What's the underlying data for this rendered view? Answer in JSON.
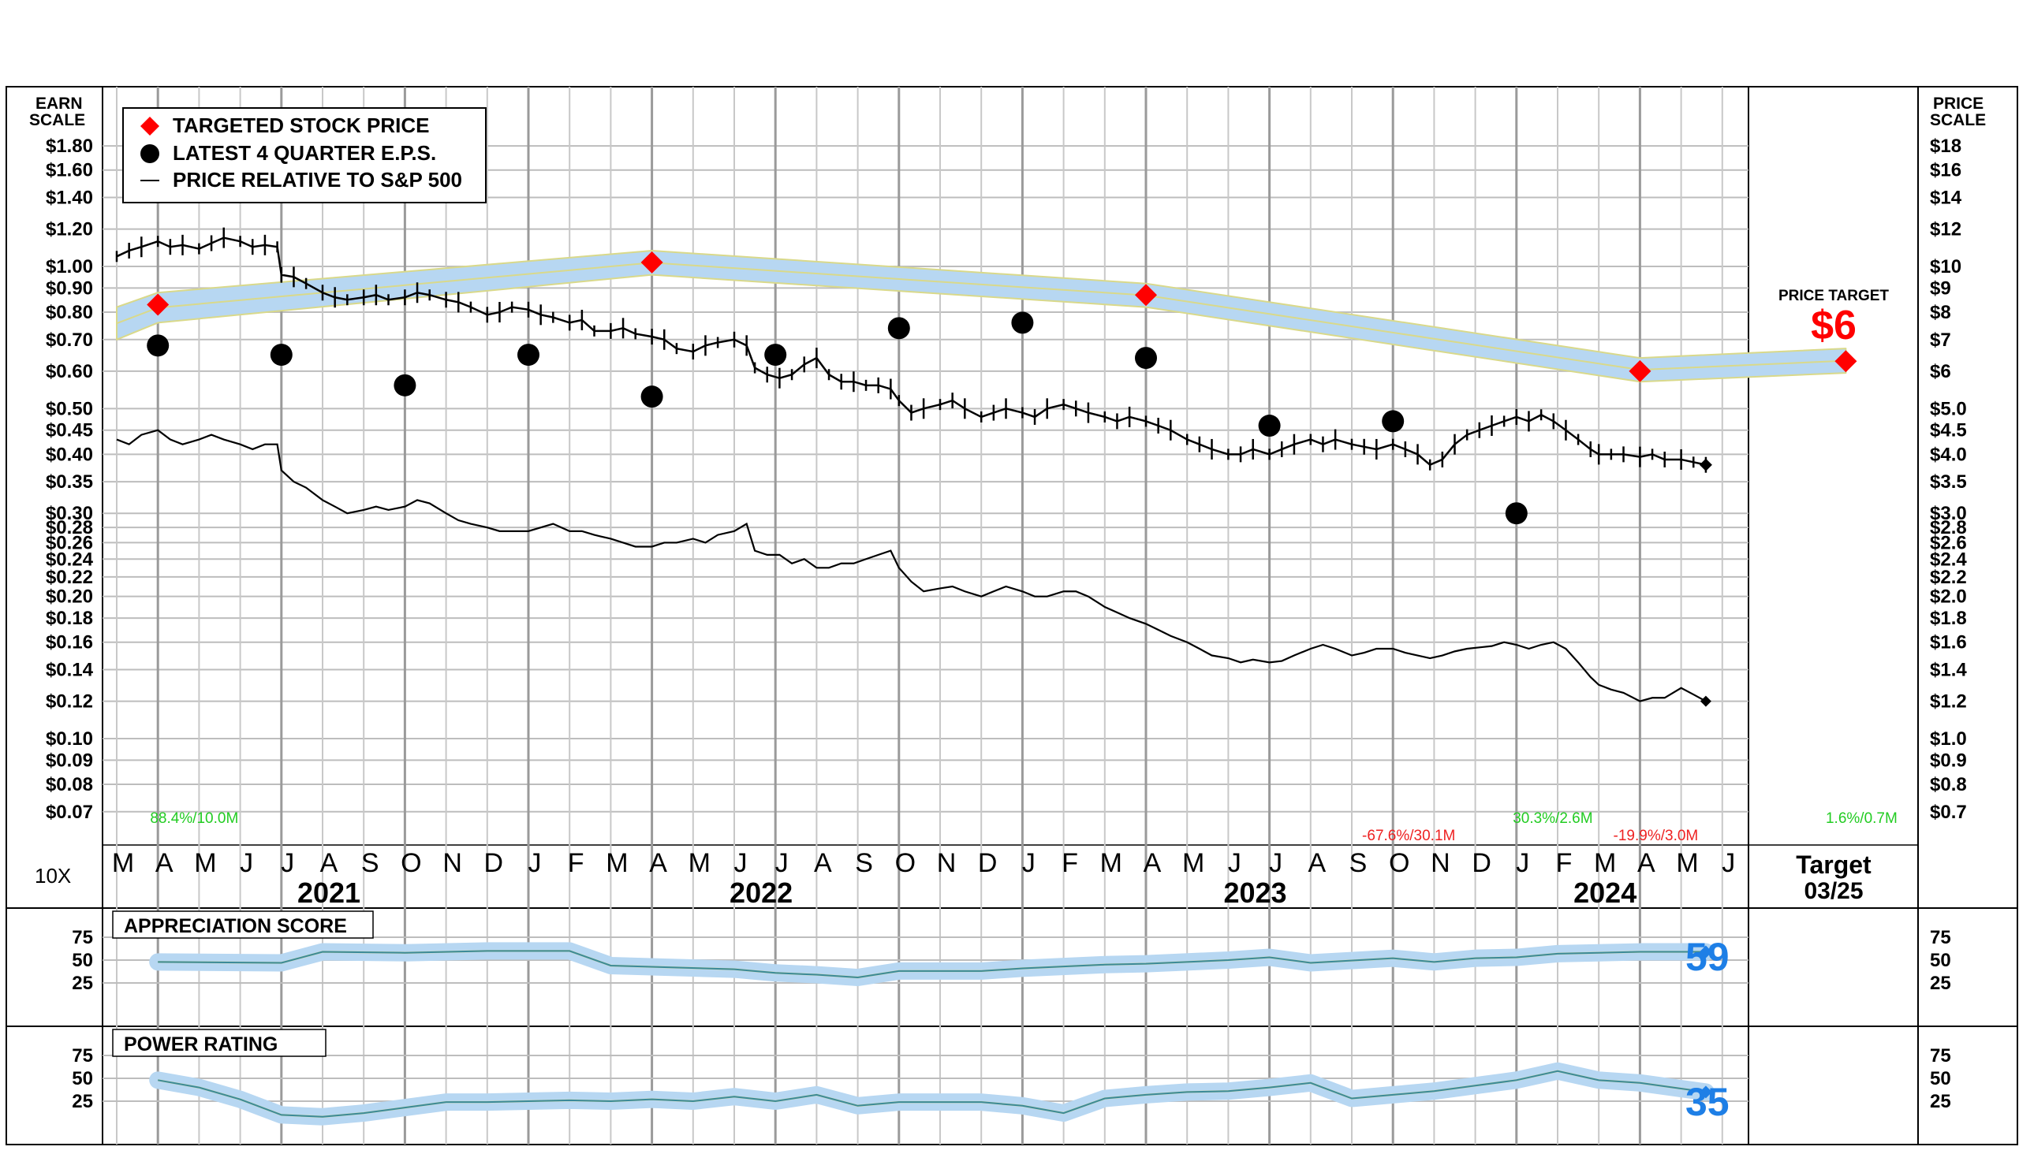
{
  "header": {
    "earn_scale_label_1": "EARN",
    "earn_scale_label_2": "SCALE",
    "price_scale_label_1": "PRICE",
    "price_scale_label_2": "SCALE",
    "multiplier": "10X",
    "price_target_label": "PRICE TARGET",
    "price_target_value": "$6",
    "target_label": "Target",
    "target_date": "03/25"
  },
  "legend": {
    "items": [
      {
        "label": "TARGETED STOCK PRICE",
        "icon": "red-diamond-icon"
      },
      {
        "label": "LATEST 4 QUARTER E.P.S.",
        "icon": "black-dot-icon"
      },
      {
        "label": "PRICE RELATIVE TO S&P 500",
        "icon": "line-icon"
      }
    ]
  },
  "colors": {
    "band": "#b7d7f2",
    "target": "#ff0000",
    "eps": "#000000",
    "score_value": "#1e7fe6",
    "ann_green": "#22cc22",
    "ann_red": "#ee2222"
  },
  "chart_data": {
    "type": "line",
    "log_scale": true,
    "grid": true,
    "months": [
      "M",
      "A",
      "M",
      "J",
      "J",
      "A",
      "S",
      "O",
      "N",
      "D",
      "J",
      "F",
      "M",
      "A",
      "M",
      "J",
      "J",
      "A",
      "S",
      "O",
      "N",
      "D",
      "J",
      "F",
      "M",
      "A",
      "M",
      "J",
      "J",
      "A",
      "S",
      "O",
      "N",
      "D",
      "J",
      "F",
      "M",
      "A",
      "M",
      "J"
    ],
    "years": [
      {
        "label": "2021",
        "month_index": 5
      },
      {
        "label": "2022",
        "month_index": 15.5
      },
      {
        "label": "2023",
        "month_index": 27.5
      },
      {
        "label": "2024",
        "month_index": 36
      }
    ],
    "earn_ticks": [
      "$1.80",
      "$1.60",
      "$1.40",
      "$1.20",
      "$1.00",
      "$0.90",
      "$0.80",
      "$0.70",
      "$0.60",
      "$0.50",
      "$0.45",
      "$0.40",
      "$0.35",
      "$0.30",
      "$0.28",
      "$0.26",
      "$0.24",
      "$0.22",
      "$0.20",
      "$0.18",
      "$0.16",
      "$0.14",
      "$0.12",
      "$0.10",
      "$0.09",
      "$0.08",
      "$0.07"
    ],
    "earn_tick_values": [
      1.8,
      1.6,
      1.4,
      1.2,
      1.0,
      0.9,
      0.8,
      0.7,
      0.6,
      0.5,
      0.45,
      0.4,
      0.35,
      0.3,
      0.28,
      0.26,
      0.24,
      0.22,
      0.2,
      0.18,
      0.16,
      0.14,
      0.12,
      0.1,
      0.09,
      0.08,
      0.07
    ],
    "price_ticks": [
      "$18",
      "$16",
      "$14",
      "$12",
      "$10",
      "$9",
      "$8",
      "$7",
      "$6",
      "$5.0",
      "$4.5",
      "$4.0",
      "$3.5",
      "$3.0",
      "$2.8",
      "$2.6",
      "$2.4",
      "$2.2",
      "$2.0",
      "$1.8",
      "$1.6",
      "$1.4",
      "$1.2",
      "$1.0",
      "$0.9",
      "$0.8",
      "$0.7"
    ],
    "target_prices": [
      {
        "month": 1,
        "price": 8.3
      },
      {
        "month": 13,
        "price": 10.2
      },
      {
        "month": 25,
        "price": 8.7
      },
      {
        "month": 37,
        "price": 6.0
      },
      {
        "month": 42,
        "price": 6.3
      }
    ],
    "band": [
      {
        "month": 0,
        "lo": 7.0,
        "hi": 8.2
      },
      {
        "month": 1,
        "lo": 7.6,
        "hi": 8.8
      },
      {
        "month": 13,
        "lo": 9.6,
        "hi": 10.8
      },
      {
        "month": 25,
        "lo": 8.2,
        "hi": 9.2
      },
      {
        "month": 37,
        "lo": 5.7,
        "hi": 6.4
      },
      {
        "month": 42,
        "lo": 5.95,
        "hi": 6.7
      }
    ],
    "eps": [
      {
        "month": 1,
        "value": 0.68
      },
      {
        "month": 4,
        "value": 0.65
      },
      {
        "month": 7,
        "value": 0.56
      },
      {
        "month": 10,
        "value": 0.65
      },
      {
        "month": 13,
        "value": 0.53
      },
      {
        "month": 16,
        "value": 0.65
      },
      {
        "month": 19,
        "value": 0.74
      },
      {
        "month": 22,
        "value": 0.76
      },
      {
        "month": 25,
        "value": 0.64
      },
      {
        "month": 28,
        "value": 0.46
      },
      {
        "month": 31,
        "value": 0.47
      },
      {
        "month": 34,
        "value": 0.3
      }
    ],
    "price_weekly": [
      [
        0,
        10.5
      ],
      [
        0.3,
        10.8
      ],
      [
        0.6,
        11.0
      ],
      [
        1.0,
        11.3
      ],
      [
        1.3,
        11.0
      ],
      [
        1.6,
        11.1
      ],
      [
        2.0,
        10.9
      ],
      [
        2.3,
        11.2
      ],
      [
        2.6,
        11.5
      ],
      [
        3.0,
        11.3
      ],
      [
        3.3,
        11.0
      ],
      [
        3.6,
        11.1
      ],
      [
        3.9,
        11.0
      ],
      [
        4.0,
        9.6
      ],
      [
        4.3,
        9.5
      ],
      [
        4.6,
        9.2
      ],
      [
        5.0,
        8.8
      ],
      [
        5.3,
        8.6
      ],
      [
        5.6,
        8.5
      ],
      [
        6.0,
        8.6
      ],
      [
        6.3,
        8.7
      ],
      [
        6.6,
        8.5
      ],
      [
        7.0,
        8.6
      ],
      [
        7.3,
        8.8
      ],
      [
        7.6,
        8.7
      ],
      [
        8.0,
        8.5
      ],
      [
        8.3,
        8.4
      ],
      [
        8.6,
        8.2
      ],
      [
        9.0,
        7.9
      ],
      [
        9.3,
        8.0
      ],
      [
        9.6,
        8.2
      ],
      [
        10.0,
        8.1
      ],
      [
        10.3,
        7.9
      ],
      [
        10.6,
        7.8
      ],
      [
        11.0,
        7.6
      ],
      [
        11.3,
        7.7
      ],
      [
        11.6,
        7.3
      ],
      [
        12.0,
        7.3
      ],
      [
        12.3,
        7.4
      ],
      [
        12.6,
        7.2
      ],
      [
        13.0,
        7.1
      ],
      [
        13.3,
        7.0
      ],
      [
        13.6,
        6.7
      ],
      [
        14.0,
        6.6
      ],
      [
        14.3,
        6.8
      ],
      [
        14.6,
        6.9
      ],
      [
        15.0,
        7.0
      ],
      [
        15.3,
        6.8
      ],
      [
        15.5,
        6.1
      ],
      [
        15.8,
        5.9
      ],
      [
        16.1,
        5.8
      ],
      [
        16.4,
        5.9
      ],
      [
        16.7,
        6.2
      ],
      [
        17.0,
        6.4
      ],
      [
        17.3,
        5.9
      ],
      [
        17.6,
        5.7
      ],
      [
        17.9,
        5.7
      ],
      [
        18.2,
        5.6
      ],
      [
        18.5,
        5.6
      ],
      [
        18.8,
        5.5
      ],
      [
        19.0,
        5.2
      ],
      [
        19.3,
        4.9
      ],
      [
        19.6,
        5.0
      ],
      [
        20.0,
        5.1
      ],
      [
        20.3,
        5.2
      ],
      [
        20.6,
        5.0
      ],
      [
        21.0,
        4.8
      ],
      [
        21.3,
        4.9
      ],
      [
        21.6,
        5.0
      ],
      [
        22.0,
        4.9
      ],
      [
        22.3,
        4.8
      ],
      [
        22.6,
        5.0
      ],
      [
        23.0,
        5.1
      ],
      [
        23.3,
        5.0
      ],
      [
        23.6,
        4.9
      ],
      [
        24.0,
        4.8
      ],
      [
        24.3,
        4.7
      ],
      [
        24.6,
        4.8
      ],
      [
        25.0,
        4.7
      ],
      [
        25.3,
        4.6
      ],
      [
        25.6,
        4.5
      ],
      [
        26.0,
        4.3
      ],
      [
        26.3,
        4.2
      ],
      [
        26.6,
        4.1
      ],
      [
        27.0,
        4.0
      ],
      [
        27.3,
        4.0
      ],
      [
        27.6,
        4.1
      ],
      [
        28.0,
        4.0
      ],
      [
        28.3,
        4.1
      ],
      [
        28.6,
        4.2
      ],
      [
        29.0,
        4.3
      ],
      [
        29.3,
        4.2
      ],
      [
        29.6,
        4.3
      ],
      [
        30.0,
        4.2
      ],
      [
        30.3,
        4.15
      ],
      [
        30.6,
        4.1
      ],
      [
        31.0,
        4.2
      ],
      [
        31.3,
        4.1
      ],
      [
        31.6,
        4.0
      ],
      [
        31.9,
        3.8
      ],
      [
        32.2,
        3.9
      ],
      [
        32.5,
        4.2
      ],
      [
        32.8,
        4.4
      ],
      [
        33.1,
        4.5
      ],
      [
        33.4,
        4.6
      ],
      [
        33.7,
        4.7
      ],
      [
        34.0,
        4.8
      ],
      [
        34.3,
        4.7
      ],
      [
        34.6,
        4.85
      ],
      [
        34.9,
        4.7
      ],
      [
        35.2,
        4.5
      ],
      [
        35.5,
        4.3
      ],
      [
        35.8,
        4.1
      ],
      [
        36.0,
        4.0
      ],
      [
        36.3,
        4.0
      ],
      [
        36.6,
        4.0
      ],
      [
        37.0,
        3.95
      ],
      [
        37.3,
        4.0
      ],
      [
        37.6,
        3.9
      ],
      [
        38.0,
        3.9
      ],
      [
        38.3,
        3.85
      ],
      [
        38.6,
        3.8
      ]
    ],
    "relative_sp500": [
      [
        0,
        4.3
      ],
      [
        0.3,
        4.2
      ],
      [
        0.6,
        4.4
      ],
      [
        1.0,
        4.5
      ],
      [
        1.3,
        4.3
      ],
      [
        1.6,
        4.2
      ],
      [
        2.0,
        4.3
      ],
      [
        2.3,
        4.4
      ],
      [
        2.6,
        4.3
      ],
      [
        3.0,
        4.2
      ],
      [
        3.3,
        4.1
      ],
      [
        3.6,
        4.2
      ],
      [
        3.9,
        4.2
      ],
      [
        4.0,
        3.7
      ],
      [
        4.3,
        3.5
      ],
      [
        4.6,
        3.4
      ],
      [
        5.0,
        3.2
      ],
      [
        5.3,
        3.1
      ],
      [
        5.6,
        3.0
      ],
      [
        6.0,
        3.05
      ],
      [
        6.3,
        3.1
      ],
      [
        6.6,
        3.05
      ],
      [
        7.0,
        3.1
      ],
      [
        7.3,
        3.2
      ],
      [
        7.6,
        3.15
      ],
      [
        8.0,
        3.0
      ],
      [
        8.3,
        2.9
      ],
      [
        8.6,
        2.85
      ],
      [
        9.0,
        2.8
      ],
      [
        9.3,
        2.75
      ],
      [
        9.6,
        2.75
      ],
      [
        10.0,
        2.75
      ],
      [
        10.3,
        2.8
      ],
      [
        10.6,
        2.85
      ],
      [
        11.0,
        2.75
      ],
      [
        11.3,
        2.75
      ],
      [
        11.6,
        2.7
      ],
      [
        12.0,
        2.65
      ],
      [
        12.3,
        2.6
      ],
      [
        12.6,
        2.55
      ],
      [
        13.0,
        2.55
      ],
      [
        13.3,
        2.6
      ],
      [
        13.6,
        2.6
      ],
      [
        14.0,
        2.65
      ],
      [
        14.3,
        2.6
      ],
      [
        14.6,
        2.7
      ],
      [
        15.0,
        2.75
      ],
      [
        15.3,
        2.85
      ],
      [
        15.5,
        2.5
      ],
      [
        15.8,
        2.45
      ],
      [
        16.1,
        2.45
      ],
      [
        16.4,
        2.35
      ],
      [
        16.7,
        2.4
      ],
      [
        17.0,
        2.3
      ],
      [
        17.3,
        2.3
      ],
      [
        17.6,
        2.35
      ],
      [
        17.9,
        2.35
      ],
      [
        18.2,
        2.4
      ],
      [
        18.5,
        2.45
      ],
      [
        18.8,
        2.5
      ],
      [
        19.0,
        2.3
      ],
      [
        19.3,
        2.15
      ],
      [
        19.6,
        2.05
      ],
      [
        20.0,
        2.08
      ],
      [
        20.3,
        2.1
      ],
      [
        20.6,
        2.05
      ],
      [
        21.0,
        2.0
      ],
      [
        21.3,
        2.05
      ],
      [
        21.6,
        2.1
      ],
      [
        22.0,
        2.05
      ],
      [
        22.3,
        2.0
      ],
      [
        22.6,
        2.0
      ],
      [
        23.0,
        2.05
      ],
      [
        23.3,
        2.05
      ],
      [
        23.6,
        2.0
      ],
      [
        24.0,
        1.9
      ],
      [
        24.3,
        1.85
      ],
      [
        24.6,
        1.8
      ],
      [
        25.0,
        1.75
      ],
      [
        25.3,
        1.7
      ],
      [
        25.6,
        1.65
      ],
      [
        26.0,
        1.6
      ],
      [
        26.3,
        1.55
      ],
      [
        26.6,
        1.5
      ],
      [
        27.0,
        1.48
      ],
      [
        27.3,
        1.45
      ],
      [
        27.6,
        1.47
      ],
      [
        28.0,
        1.45
      ],
      [
        28.3,
        1.46
      ],
      [
        28.6,
        1.5
      ],
      [
        29.0,
        1.55
      ],
      [
        29.3,
        1.58
      ],
      [
        29.6,
        1.55
      ],
      [
        30.0,
        1.5
      ],
      [
        30.3,
        1.52
      ],
      [
        30.6,
        1.55
      ],
      [
        31.0,
        1.55
      ],
      [
        31.3,
        1.52
      ],
      [
        31.6,
        1.5
      ],
      [
        31.9,
        1.48
      ],
      [
        32.2,
        1.5
      ],
      [
        32.5,
        1.53
      ],
      [
        32.8,
        1.55
      ],
      [
        33.1,
        1.56
      ],
      [
        33.4,
        1.57
      ],
      [
        33.7,
        1.6
      ],
      [
        34.0,
        1.58
      ],
      [
        34.3,
        1.55
      ],
      [
        34.6,
        1.58
      ],
      [
        34.9,
        1.6
      ],
      [
        35.2,
        1.55
      ],
      [
        35.5,
        1.45
      ],
      [
        35.8,
        1.35
      ],
      [
        36.0,
        1.3
      ],
      [
        36.3,
        1.27
      ],
      [
        36.6,
        1.25
      ],
      [
        37.0,
        1.2
      ],
      [
        37.3,
        1.22
      ],
      [
        37.6,
        1.22
      ],
      [
        38.0,
        1.28
      ],
      [
        38.3,
        1.24
      ],
      [
        38.6,
        1.2
      ]
    ],
    "annotations": [
      {
        "text": "88.4%/10.0M",
        "month": 1.5,
        "row": 0,
        "color": "green"
      },
      {
        "text": "30.3%/2.6M",
        "month": 34.5,
        "row": 0,
        "color": "green"
      },
      {
        "text": "1.6%/0.7M",
        "month": 42,
        "row": 0,
        "color": "green"
      },
      {
        "text": "-67.6%/30.1M",
        "month": 31,
        "row": 1,
        "color": "red"
      },
      {
        "text": "-19.9%/3.0M",
        "month": 37,
        "row": 1,
        "color": "red"
      }
    ],
    "appreciation_score": {
      "title": "APPRECIATION SCORE",
      "current": "59",
      "ticks": [
        "75",
        "50",
        "25"
      ],
      "values": [
        [
          1,
          48
        ],
        [
          4,
          47
        ],
        [
          5,
          59
        ],
        [
          7,
          58
        ],
        [
          9,
          60
        ],
        [
          11,
          60
        ],
        [
          12,
          44
        ],
        [
          15,
          40
        ],
        [
          16,
          36
        ],
        [
          17,
          34
        ],
        [
          18,
          31
        ],
        [
          19,
          38
        ],
        [
          21,
          38
        ],
        [
          22,
          41
        ],
        [
          24,
          45
        ],
        [
          25,
          46
        ],
        [
          27,
          50
        ],
        [
          28,
          53
        ],
        [
          29,
          47
        ],
        [
          31,
          52
        ],
        [
          32,
          48
        ],
        [
          33,
          52
        ],
        [
          34,
          53
        ],
        [
          35,
          57
        ],
        [
          37,
          59
        ],
        [
          38.6,
          59
        ]
      ]
    },
    "power_rating": {
      "title": "POWER RATING",
      "current": "35",
      "ticks": [
        "75",
        "50",
        "25"
      ],
      "values": [
        [
          1,
          48
        ],
        [
          2,
          40
        ],
        [
          3,
          27
        ],
        [
          4,
          10
        ],
        [
          5,
          8
        ],
        [
          6,
          12
        ],
        [
          7,
          18
        ],
        [
          8,
          24
        ],
        [
          9,
          24
        ],
        [
          10,
          25
        ],
        [
          11,
          26
        ],
        [
          12,
          25
        ],
        [
          13,
          27
        ],
        [
          14,
          25
        ],
        [
          15,
          30
        ],
        [
          16,
          25
        ],
        [
          17,
          32
        ],
        [
          18,
          20
        ],
        [
          19,
          24
        ],
        [
          20,
          24
        ],
        [
          21,
          24
        ],
        [
          22,
          20
        ],
        [
          23,
          12
        ],
        [
          24,
          28
        ],
        [
          25,
          32
        ],
        [
          26,
          35
        ],
        [
          27,
          36
        ],
        [
          28,
          40
        ],
        [
          29,
          45
        ],
        [
          30,
          28
        ],
        [
          31,
          32
        ],
        [
          32,
          36
        ],
        [
          33,
          42
        ],
        [
          34,
          48
        ],
        [
          35,
          58
        ],
        [
          36,
          48
        ],
        [
          37,
          45
        ],
        [
          38.6,
          35
        ]
      ]
    }
  }
}
